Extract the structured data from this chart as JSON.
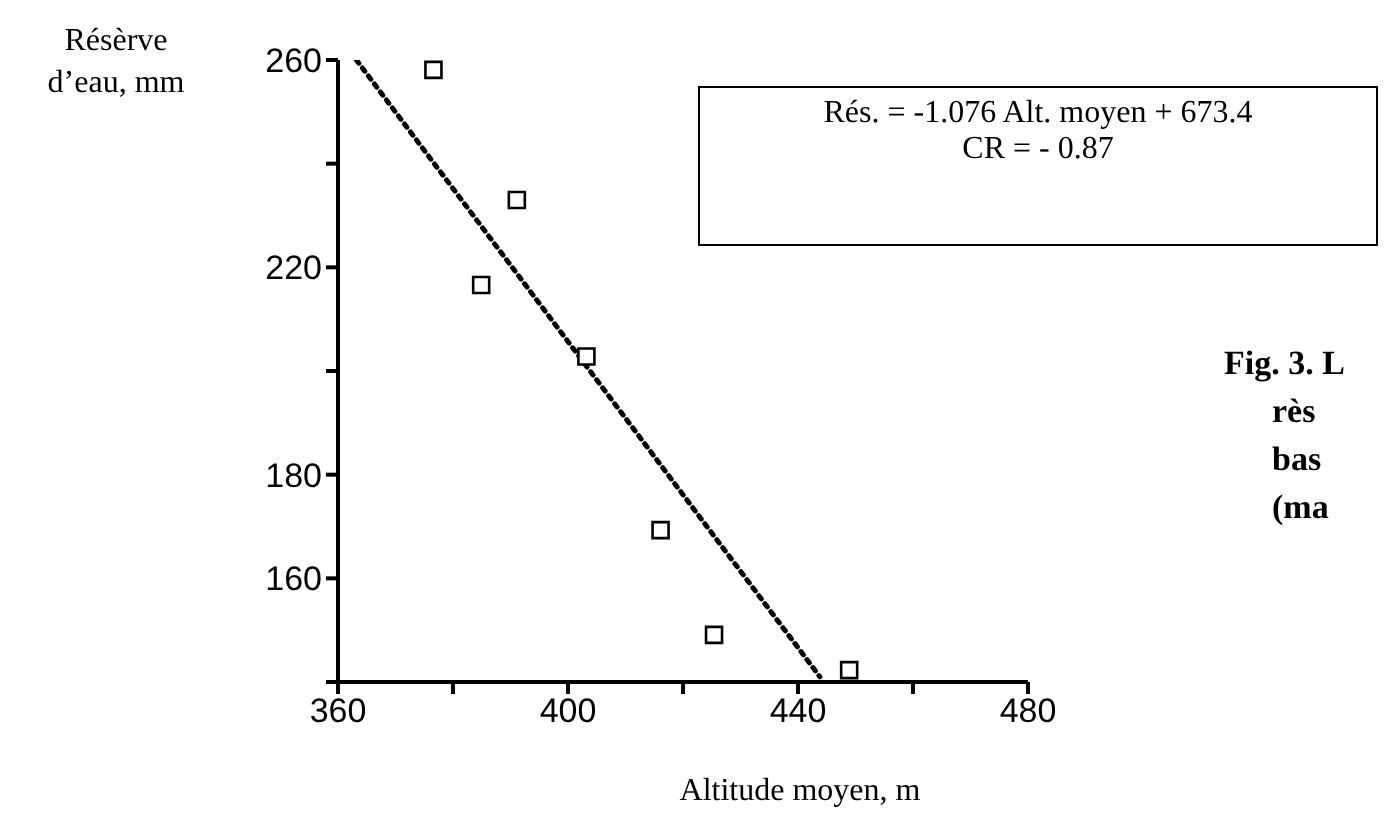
{
  "chart_data": {
    "type": "scatter",
    "xlabel": "Altitude moyen, m",
    "ylabel": "Résèrve d’eau, mm",
    "xlim": [
      360,
      480
    ],
    "xticks": [
      360,
      {
        "value": 380,
        "label": null
      },
      400,
      {
        "value": 420,
        "label": null
      },
      440,
      {
        "value": 460,
        "label": null
      },
      480
    ],
    "ylim": [
      140,
      260
    ],
    "yticks": [
      {
        "value": 140,
        "label": null
      },
      160,
      180,
      {
        "value": 200,
        "label": null
      },
      220,
      {
        "value": 240,
        "label": null
      },
      260
    ],
    "grid": false,
    "legend": false,
    "series": [
      {
        "marker": "square",
        "color": "#000000",
        "x": [
          376.6,
          391.1,
          384.9,
          403.2,
          416.1,
          425.4,
          448.9
        ],
        "values": [
          258.1,
          233,
          216.6,
          202.8,
          169.3,
          149.1,
          142.3
        ]
      },
      {
        "type": "line",
        "marker": "none",
        "color": "#000000",
        "line_style": "dotted",
        "x": [
          363.2,
          443.8
        ],
        "values": [
          260,
          141
        ]
      }
    ],
    "annotations": [
      "Rés. = -1.076 Alt. moyen + 673.4",
      "CR = - 0.87",
      "Fig. 3. L",
      "rès",
      "bas",
      "(ma"
    ]
  }
}
